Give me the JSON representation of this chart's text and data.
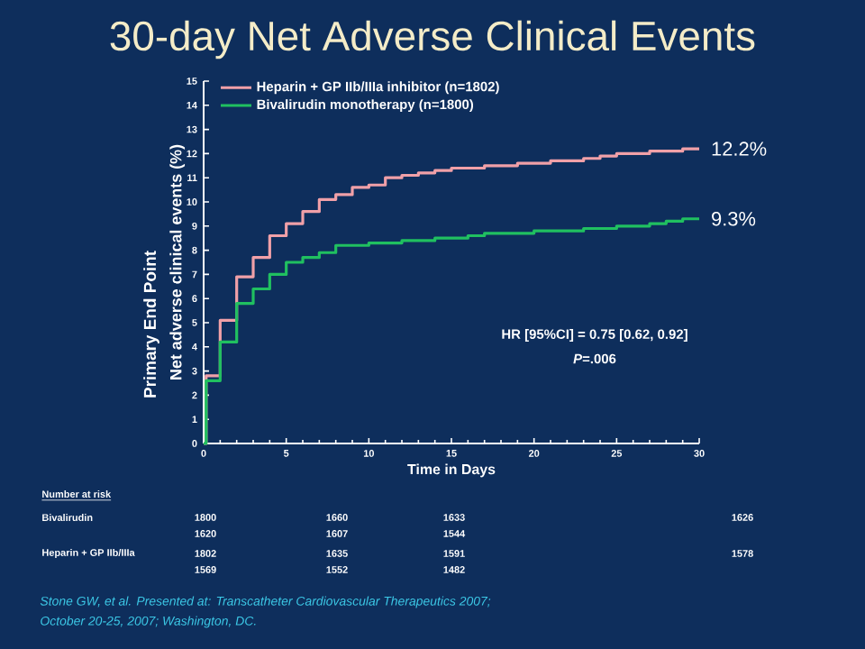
{
  "chart_data": {
    "type": "step",
    "title": "30-day Net Adverse Clinical Events",
    "xlabel": "Time in Days",
    "ylabel": "Net adverse clinical events (%)",
    "series": [
      {
        "name": "Heparin + GP IIb/IIIa inhibitor (n=1802)",
        "color": "#f0a0a8",
        "x": [
          0,
          0.15,
          1,
          2,
          3,
          4,
          5,
          6,
          7,
          8,
          9,
          10,
          11,
          12,
          13,
          14,
          15,
          17,
          19,
          21,
          23,
          24,
          25,
          27,
          29,
          30
        ],
        "values": [
          0,
          2.8,
          5.1,
          6.9,
          7.7,
          8.6,
          9.1,
          9.6,
          10.1,
          10.3,
          10.6,
          10.7,
          11.0,
          11.1,
          11.2,
          11.3,
          11.4,
          11.5,
          11.6,
          11.7,
          11.8,
          11.9,
          12.0,
          12.1,
          12.2,
          12.2
        ]
      },
      {
        "name": "Bivalirudin monotherapy (n=1800)",
        "color": "#20c060",
        "x": [
          0,
          0.15,
          1,
          2,
          3,
          4,
          5,
          6,
          7,
          8,
          10,
          12,
          14,
          16,
          17,
          20,
          23,
          25,
          27,
          28,
          29,
          30
        ],
        "values": [
          0,
          2.6,
          4.2,
          5.8,
          6.4,
          7.0,
          7.5,
          7.7,
          7.9,
          8.2,
          8.3,
          8.4,
          8.5,
          8.6,
          8.7,
          8.8,
          8.9,
          9.0,
          9.1,
          9.2,
          9.3,
          9.3
        ]
      }
    ],
    "xlim": [
      0,
      30
    ],
    "ylim": [
      0,
      15
    ],
    "xticks": [
      0,
      5,
      10,
      15,
      20,
      25,
      30
    ],
    "yticks": [
      0,
      1,
      2,
      3,
      4,
      5,
      6,
      7,
      8,
      9,
      10,
      11,
      12,
      13,
      14,
      15
    ],
    "legend": "top left",
    "marker": "none",
    "line_style": "solid",
    "annotations": [
      {
        "text": "12.2%",
        "x": 30,
        "y": 12.2
      },
      {
        "text": "9.3%",
        "x": 30,
        "y": 9.3
      },
      "HR [95%CI] = 0.75 [0.62, 0.92]",
      "*P*=.006",
      "Primary End Point",
      "Number at risk",
      "Bivalirudin",
      "1800",
      "1660",
      "1633",
      "1626",
      "1620",
      "1607",
      "1544",
      "Heparin + GP IIb/IIIa",
      "1802",
      "1635",
      "1591",
      "1578",
      "1569",
      "1552",
      "1482",
      "Stone GW, et al. Presented at: Transcatheter Cardiovascular Therapeutics 2007;",
      "October 20-25, 2007; Washington, DC."
    ]
  }
}
